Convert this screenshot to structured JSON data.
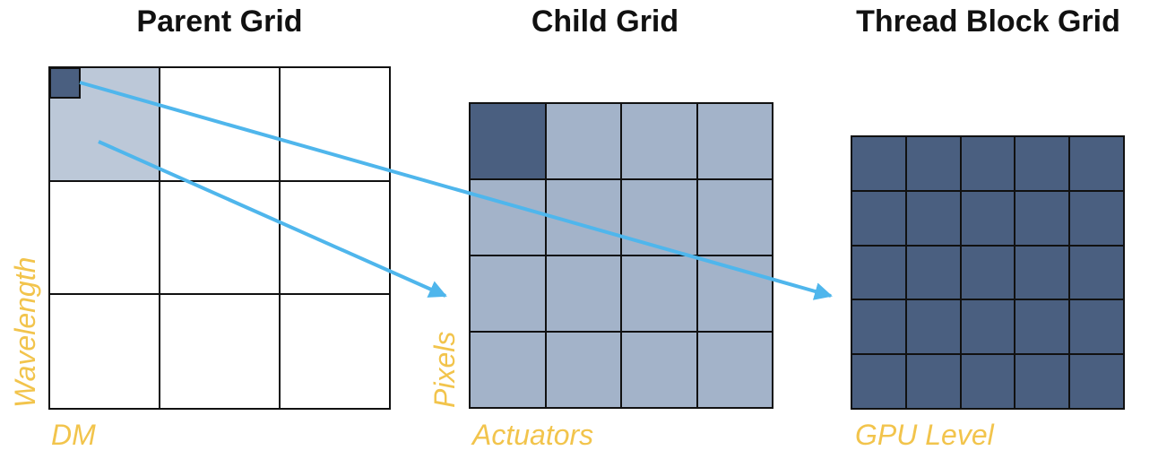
{
  "titles": {
    "parent": "Parent Grid",
    "child": "Child Grid",
    "thread": "Thread Block Grid"
  },
  "labels": {
    "parent_x": "DM",
    "parent_y": "Wavelength",
    "child_x": "Actuators",
    "child_y": "Pixels",
    "thread_x": "GPU Level"
  },
  "grids": {
    "parent": {
      "rows": 3,
      "cols": 3
    },
    "child": {
      "rows": 4,
      "cols": 4
    },
    "thread": {
      "rows": 5,
      "cols": 5
    }
  },
  "colors": {
    "dark_cell": "#4a5f80",
    "light_cell": "#a3b3c9",
    "highlight_cell": "#bcc8d8",
    "grid_line": "#111111",
    "arrow": "#4fb6ec",
    "label": "#f2c44c"
  }
}
